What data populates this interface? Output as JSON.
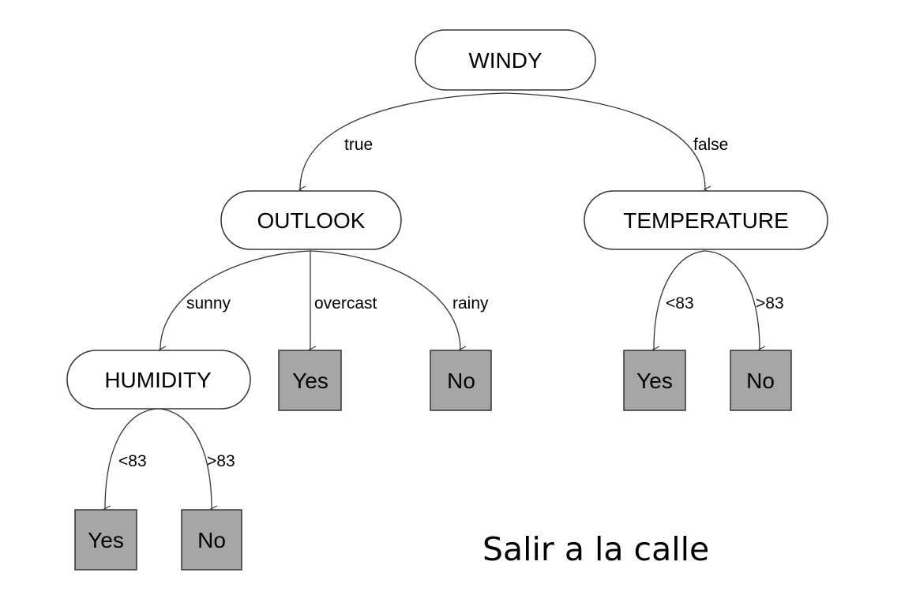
{
  "nodes": {
    "windy": "WINDY",
    "outlook": "OUTLOOK",
    "temperature": "TEMPERATURE",
    "humidity": "HUMIDITY",
    "leaf_outlook_overcast": "Yes",
    "leaf_outlook_rainy": "No",
    "leaf_temp_lt": "Yes",
    "leaf_temp_gt": "No",
    "leaf_humidity_lt": "Yes",
    "leaf_humidity_gt": "No"
  },
  "edges": {
    "windy_true": "true",
    "windy_false": "false",
    "outlook_sunny": "sunny",
    "outlook_overcast": "overcast",
    "outlook_rainy": "rainy",
    "temp_lt": "<83",
    "temp_gt": ">83",
    "humidity_lt": "<83",
    "humidity_gt": ">83"
  },
  "caption": "Salir a la calle",
  "colors": {
    "leaf_fill": "#a6a6a6",
    "stroke": "#333333",
    "background": "#ffffff"
  }
}
